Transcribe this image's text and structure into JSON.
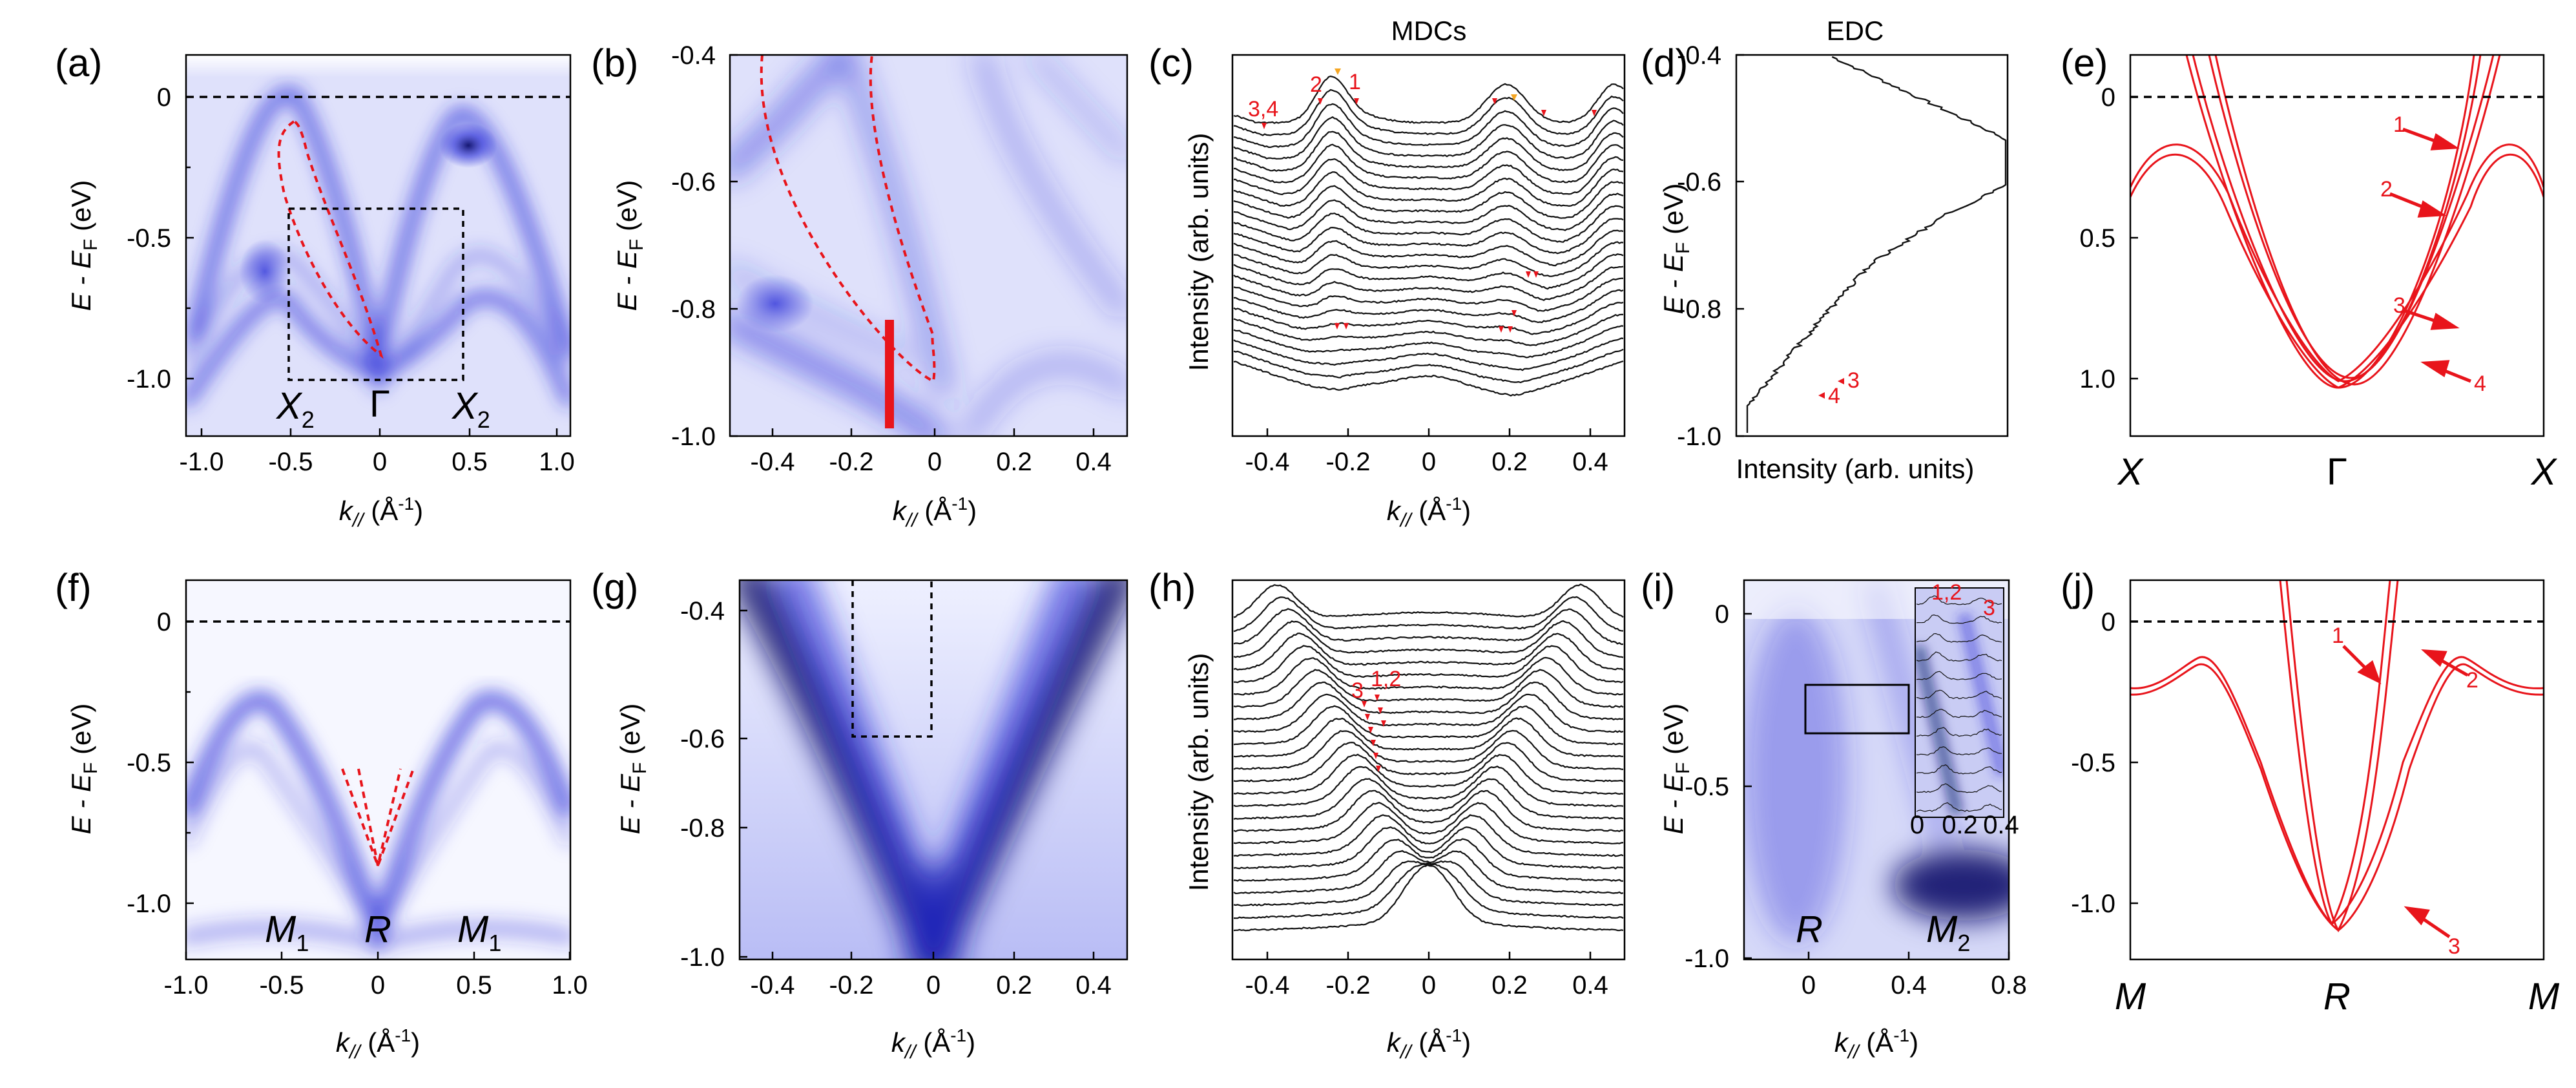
{
  "panel_labels": [
    "(a)",
    "(b)",
    "(c)",
    "(d)",
    "(e)",
    "(f)",
    "(g)",
    "(h)",
    "(i)",
    "(j)"
  ],
  "titles": {
    "c": "MDCs",
    "d": "EDC"
  },
  "axis_labels": {
    "energy_main": "E - E",
    "energy_sub": "F",
    "energy_unit": " (eV)",
    "k_main": "k",
    "k_sub": "//",
    "k_unit_open": " (Å",
    "k_unit_sup": "-1",
    "k_unit_close": ")",
    "intensity": "Intensity (arb. units)"
  },
  "high_symmetry": {
    "a": [
      "X",
      "Γ",
      "X"
    ],
    "a_sub": "2",
    "e": [
      "X",
      "Γ",
      "X"
    ],
    "f": [
      "M",
      "R",
      "M"
    ],
    "f_sub": "1",
    "i": [
      "R",
      "M"
    ],
    "i_sub": "2",
    "j": [
      "M",
      "R",
      "M"
    ]
  },
  "ticks": {
    "a_y": [
      "0",
      "-0.5",
      "-1.0"
    ],
    "a_x": [
      "-1.0",
      "-0.5",
      "0",
      "0.5",
      "1.0"
    ],
    "b_y": [
      "-0.4",
      "-0.6",
      "-0.8",
      "-1.0"
    ],
    "b_x": [
      "-0.4",
      "-0.2",
      "0",
      "0.2",
      "0.4"
    ],
    "c_x": [
      "-0.4",
      "-0.2",
      "0",
      "0.2",
      "0.4"
    ],
    "d_y": [
      "-0.4",
      "-0.6",
      "-0.8",
      "-1.0"
    ],
    "e_y": [
      "0",
      "0.5",
      "1.0"
    ],
    "f_y": [
      "0",
      "-0.5",
      "-1.0"
    ],
    "f_x": [
      "-1.0",
      "-0.5",
      "0",
      "0.5",
      "1.0"
    ],
    "g_y": [
      "-0.4",
      "-0.6",
      "-0.8",
      "-1.0"
    ],
    "g_x": [
      "-0.4",
      "-0.2",
      "0",
      "0.2",
      "0.4"
    ],
    "h_x": [
      "-0.4",
      "-0.2",
      "0",
      "0.2",
      "0.4"
    ],
    "i_y": [
      "0",
      "-0.5",
      "-1.0"
    ],
    "i_x": [
      "0",
      "0.4",
      "0.8"
    ],
    "i_inset_x": [
      "0",
      "0.2",
      "0.4"
    ],
    "j_y": [
      "0",
      "-0.5",
      "-1.0"
    ]
  },
  "annotations": {
    "c_labels": [
      "3,4",
      "2",
      "1"
    ],
    "d_labels": [
      "3",
      "4"
    ],
    "e_labels": [
      "1",
      "2",
      "3",
      "4"
    ],
    "h_labels": [
      "1,2",
      "3"
    ],
    "i_inset_labels": [
      "1,2",
      "3"
    ],
    "j_labels": [
      "1",
      "2",
      "3"
    ]
  },
  "colors": {
    "band_map": "#2a2fd8",
    "annotation_red": "#e8141b",
    "marker_orange": "#f5a623",
    "fermi_dash": "#000000"
  }
}
